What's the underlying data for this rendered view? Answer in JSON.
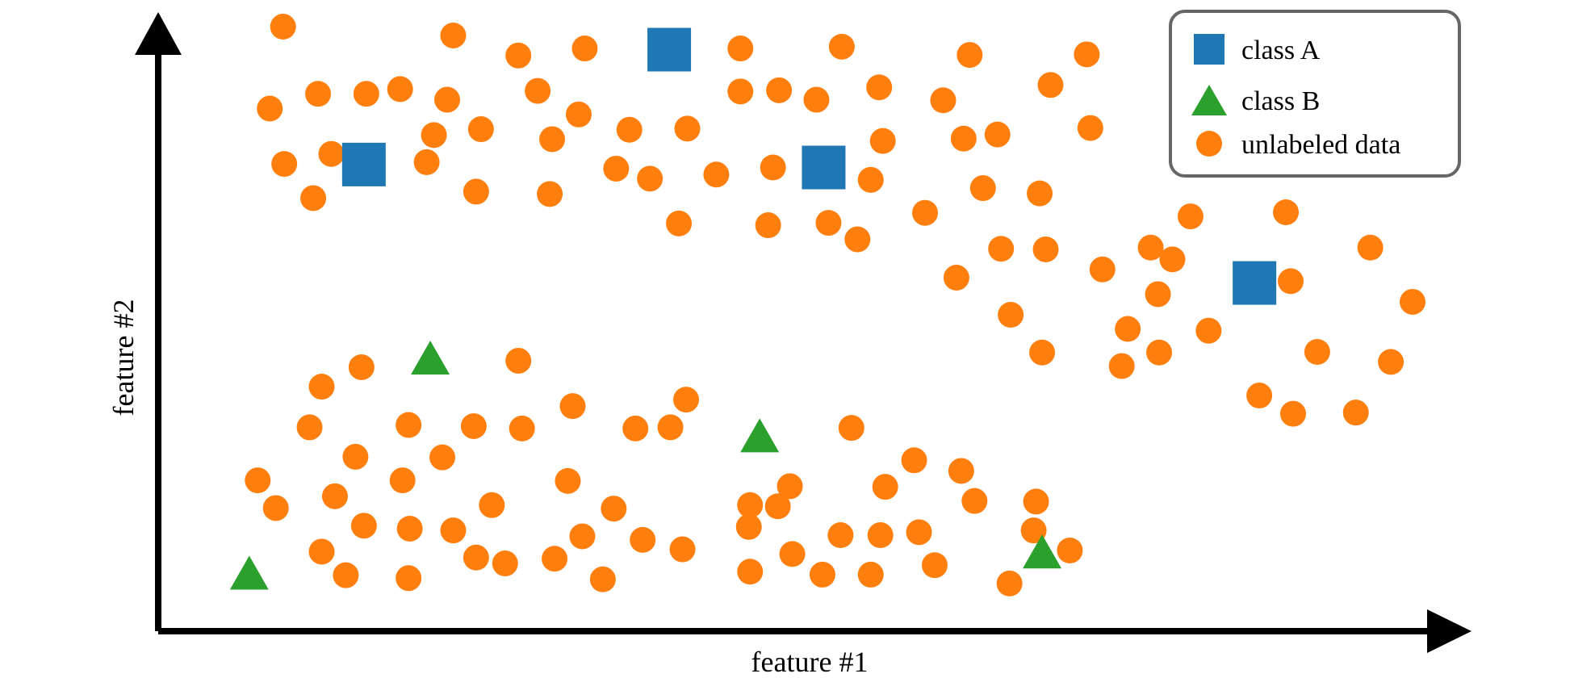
{
  "chart_data": {
    "type": "scatter",
    "title": "",
    "xlabel": "feature #1",
    "ylabel": "feature #2",
    "xlim": [
      0,
      100
    ],
    "ylim": [
      0,
      100
    ],
    "grid": false,
    "legend_position": "top-right",
    "colors": {
      "class_a": "#1f77b4",
      "class_b": "#2ca02c",
      "unlabeled": "#ff7f0e"
    },
    "series": [
      {
        "name": "class A",
        "marker": "square",
        "color": "#1f77b4",
        "points": [
          [
            13.1,
            75.5
          ],
          [
            38.4,
            95.0
          ],
          [
            51.2,
            75.0
          ],
          [
            86.9,
            55.4
          ]
        ]
      },
      {
        "name": "class B",
        "marker": "triangle",
        "color": "#2ca02c",
        "points": [
          [
            3.6,
            6.1
          ],
          [
            18.6,
            42.6
          ],
          [
            45.9,
            29.4
          ],
          [
            69.3,
            9.7
          ]
        ]
      },
      {
        "name": "unlabeled data",
        "marker": "circle",
        "color": "#ff7f0e",
        "points": [
          [
            6.4,
            98.9
          ],
          [
            20.5,
            97.4
          ],
          [
            25.9,
            94.0
          ],
          [
            31.4,
            95.2
          ],
          [
            44.3,
            95.2
          ],
          [
            52.7,
            95.5
          ],
          [
            63.3,
            94.1
          ],
          [
            73.0,
            94.2
          ],
          [
            5.3,
            85.0
          ],
          [
            9.3,
            87.5
          ],
          [
            13.3,
            87.5
          ],
          [
            16.1,
            88.3
          ],
          [
            20.0,
            86.5
          ],
          [
            27.5,
            88.0
          ],
          [
            30.9,
            84.0
          ],
          [
            44.3,
            87.9
          ],
          [
            47.5,
            88.1
          ],
          [
            50.6,
            86.5
          ],
          [
            55.8,
            88.6
          ],
          [
            61.1,
            86.4
          ],
          [
            70.0,
            89.0
          ],
          [
            6.5,
            75.6
          ],
          [
            10.4,
            77.3
          ],
          [
            18.9,
            80.5
          ],
          [
            22.8,
            81.5
          ],
          [
            28.7,
            79.8
          ],
          [
            35.1,
            81.4
          ],
          [
            39.9,
            81.6
          ],
          [
            56.1,
            79.5
          ],
          [
            62.8,
            79.9
          ],
          [
            65.6,
            80.6
          ],
          [
            73.3,
            81.7
          ],
          [
            18.3,
            75.9
          ],
          [
            34.0,
            74.8
          ],
          [
            36.8,
            73.1
          ],
          [
            42.3,
            73.8
          ],
          [
            47.0,
            75.0
          ],
          [
            55.1,
            72.9
          ],
          [
            64.4,
            71.5
          ],
          [
            8.9,
            69.8
          ],
          [
            22.4,
            70.9
          ],
          [
            28.5,
            70.5
          ],
          [
            69.1,
            70.6
          ],
          [
            59.6,
            67.3
          ],
          [
            81.6,
            66.7
          ],
          [
            89.5,
            67.4
          ],
          [
            39.2,
            65.5
          ],
          [
            46.6,
            65.2
          ],
          [
            51.6,
            65.6
          ],
          [
            54.0,
            62.8
          ],
          [
            65.9,
            61.2
          ],
          [
            69.6,
            61.1
          ],
          [
            78.3,
            61.4
          ],
          [
            96.5,
            61.4
          ],
          [
            80.1,
            59.4
          ],
          [
            74.3,
            57.7
          ],
          [
            62.2,
            56.3
          ],
          [
            78.9,
            53.5
          ],
          [
            89.9,
            55.7
          ],
          [
            100.0,
            52.2
          ],
          [
            66.7,
            50.0
          ],
          [
            76.4,
            47.6
          ],
          [
            83.1,
            47.3
          ],
          [
            69.3,
            43.6
          ],
          [
            75.9,
            41.3
          ],
          [
            79.0,
            43.6
          ],
          [
            92.1,
            43.7
          ],
          [
            98.2,
            42.0
          ],
          [
            12.9,
            41.1
          ],
          [
            9.6,
            37.8
          ],
          [
            25.9,
            42.2
          ],
          [
            87.3,
            36.3
          ],
          [
            90.1,
            33.2
          ],
          [
            95.3,
            33.4
          ],
          [
            39.8,
            35.6
          ],
          [
            30.4,
            34.5
          ],
          [
            16.8,
            31.3
          ],
          [
            8.6,
            30.9
          ],
          [
            22.2,
            31.1
          ],
          [
            38.5,
            30.9
          ],
          [
            26.2,
            30.7
          ],
          [
            35.6,
            30.7
          ],
          [
            53.5,
            30.8
          ],
          [
            12.4,
            25.9
          ],
          [
            19.6,
            25.8
          ],
          [
            58.7,
            25.3
          ],
          [
            4.3,
            21.9
          ],
          [
            16.3,
            21.9
          ],
          [
            30.0,
            21.8
          ],
          [
            10.7,
            19.2
          ],
          [
            48.4,
            20.9
          ],
          [
            56.3,
            20.8
          ],
          [
            62.6,
            23.5
          ],
          [
            5.8,
            17.2
          ],
          [
            23.7,
            17.7
          ],
          [
            33.8,
            17.1
          ],
          [
            47.4,
            17.5
          ],
          [
            45.1,
            17.7
          ],
          [
            63.7,
            18.4
          ],
          [
            68.8,
            18.3
          ],
          [
            13.1,
            14.2
          ],
          [
            16.9,
            13.7
          ],
          [
            20.5,
            13.4
          ],
          [
            31.2,
            12.4
          ],
          [
            36.2,
            11.8
          ],
          [
            45.0,
            14.0
          ],
          [
            52.6,
            12.6
          ],
          [
            55.9,
            12.6
          ],
          [
            59.1,
            13.1
          ],
          [
            68.6,
            13.4
          ],
          [
            9.6,
            9.8
          ],
          [
            22.4,
            8.8
          ],
          [
            28.9,
            8.6
          ],
          [
            39.5,
            10.2
          ],
          [
            48.6,
            9.4
          ],
          [
            71.6,
            10.0
          ],
          [
            24.8,
            7.8
          ],
          [
            11.6,
            5.8
          ],
          [
            16.8,
            5.3
          ],
          [
            32.9,
            5.1
          ],
          [
            45.1,
            6.4
          ],
          [
            55.1,
            5.9
          ],
          [
            60.4,
            7.5
          ],
          [
            51.1,
            5.9
          ],
          [
            66.6,
            4.4
          ]
        ]
      }
    ]
  }
}
